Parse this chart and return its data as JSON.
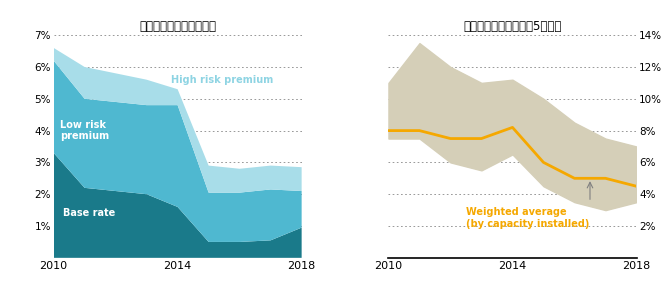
{
  "left_title": "借入費用（金利）の推移",
  "right_title": "資本費用の推移（上位5事業）",
  "left_years": [
    2010,
    2011,
    2012,
    2013,
    2014,
    2015,
    2016,
    2017,
    2018
  ],
  "base_rate": [
    3.3,
    2.2,
    2.1,
    2.0,
    1.6,
    0.5,
    0.5,
    0.55,
    0.95
  ],
  "low_risk": [
    2.9,
    2.8,
    2.8,
    2.8,
    3.2,
    1.55,
    1.55,
    1.6,
    1.15
  ],
  "high_risk": [
    0.4,
    1.0,
    0.9,
    0.8,
    0.5,
    0.85,
    0.75,
    0.75,
    0.75
  ],
  "right_years": [
    2010,
    2011,
    2012,
    2013,
    2014,
    2015,
    2016,
    2017,
    2018
  ],
  "wacc_upper": [
    11.0,
    13.5,
    12.0,
    11.0,
    11.2,
    10.0,
    8.5,
    7.5,
    7.0
  ],
  "wacc_lower": [
    7.5,
    7.5,
    6.0,
    5.5,
    6.5,
    4.5,
    3.5,
    3.0,
    3.5
  ],
  "wacc_avg": [
    8.0,
    8.0,
    7.5,
    7.5,
    8.2,
    6.0,
    5.0,
    5.0,
    4.5
  ],
  "left_ylim": [
    0,
    7
  ],
  "right_ylim": [
    0,
    14
  ],
  "left_yticks": [
    1,
    2,
    3,
    4,
    5,
    6,
    7
  ],
  "right_yticks": [
    2,
    4,
    6,
    8,
    10,
    12,
    14
  ],
  "color_base": "#1a7a8a",
  "color_low": "#4fb8d0",
  "color_high": "#a8dde9",
  "color_band": "#d5cfb8",
  "color_wacc": "#f5a800",
  "bg_color": "#ffffff",
  "label_base": "Base rate",
  "label_low": "Low risk\npremium",
  "label_high": "High risk premium",
  "label_wacc1": "Weighted average",
  "label_wacc2": "(by capacity installed)"
}
